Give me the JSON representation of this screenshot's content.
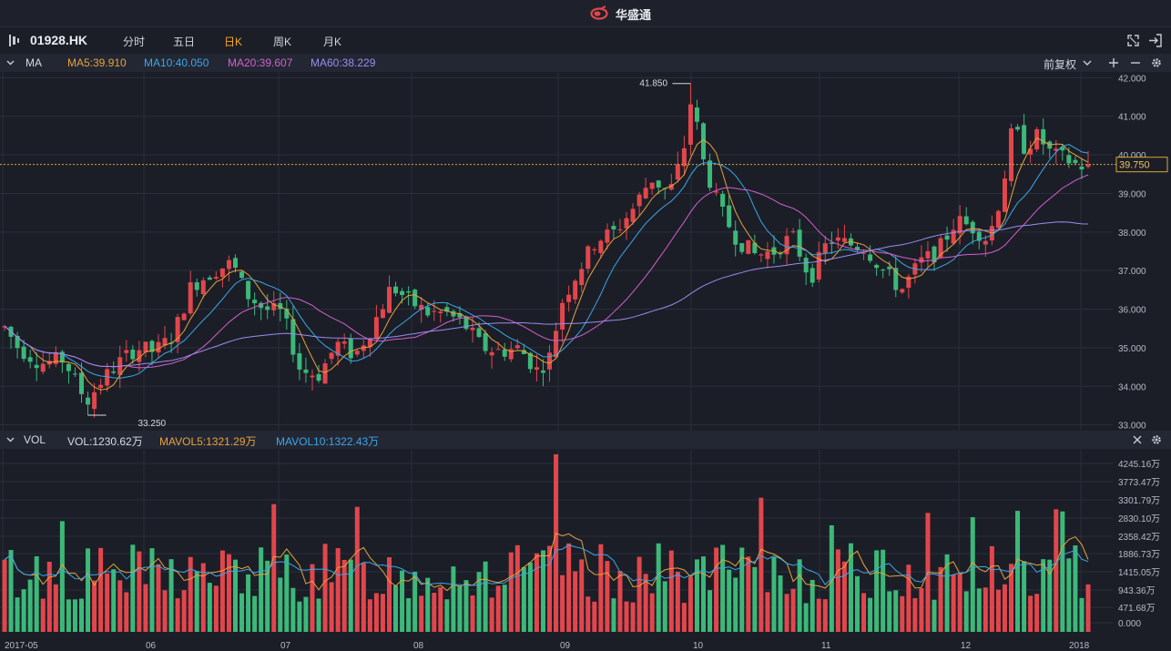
{
  "app": {
    "title": "华盛通"
  },
  "toolbar": {
    "symbol": "01928.HK",
    "periods": [
      "分时",
      "五日",
      "日K",
      "周K",
      "月K"
    ],
    "active_period": "日K"
  },
  "price_panel": {
    "indicator": "MA",
    "ma": [
      {
        "label": "MA5:39.910",
        "color": "#e8a23a"
      },
      {
        "label": "MA10:40.050",
        "color": "#3aa7e8"
      },
      {
        "label": "MA20:39.607",
        "color": "#d45fd0"
      },
      {
        "label": "MA60:38.229",
        "color": "#9b8cf0"
      }
    ],
    "adjust_label": "前复权",
    "current_price": "39.750",
    "y_ticks": [
      "42.000",
      "41.000",
      "40.000",
      "39.000",
      "38.000",
      "37.000",
      "36.000",
      "35.000",
      "34.000",
      "33.000"
    ],
    "high_label": "41.850",
    "low_label": "33.250"
  },
  "volume_panel": {
    "indicator": "VOL",
    "labels": [
      {
        "label": "VOL:1230.62万",
        "color": "#d8dbe2"
      },
      {
        "label": "MAVOL5:1321.29万",
        "color": "#e8a23a"
      },
      {
        "label": "MAVOL10:1322.43万",
        "color": "#3aa7e8"
      }
    ],
    "y_ticks": [
      "4245.16万",
      "3773.47万",
      "3301.79万",
      "2830.10万",
      "2358.42万",
      "1886.73万",
      "1415.05万",
      "943.36万",
      "471.68万",
      "0.000"
    ]
  },
  "x_ticks": [
    "2017-05",
    "06",
    "07",
    "08",
    "09",
    "10",
    "11",
    "12",
    "2018"
  ],
  "colors": {
    "up": "#e2464c",
    "down": "#3cb879",
    "background": "#1b1e27",
    "grid": "#2a2f3b"
  },
  "chart_data": {
    "type": "candlestick",
    "title": "",
    "price": {
      "ylim": [
        32.85,
        42.15
      ],
      "high": 41.85,
      "low": 33.25,
      "last": 39.75
    },
    "ma_latest": {
      "MA5": 39.91,
      "MA10": 40.05,
      "MA20": 39.607,
      "MA60": 38.229
    },
    "volume": {
      "unit": "万",
      "ylim": [
        0,
        4716.84
      ],
      "latest": 1230.62,
      "mavol5": 1321.29,
      "mavol10": 1322.43,
      "max": 4600
    },
    "x_range": [
      "2017-05",
      "2018-01"
    ]
  }
}
